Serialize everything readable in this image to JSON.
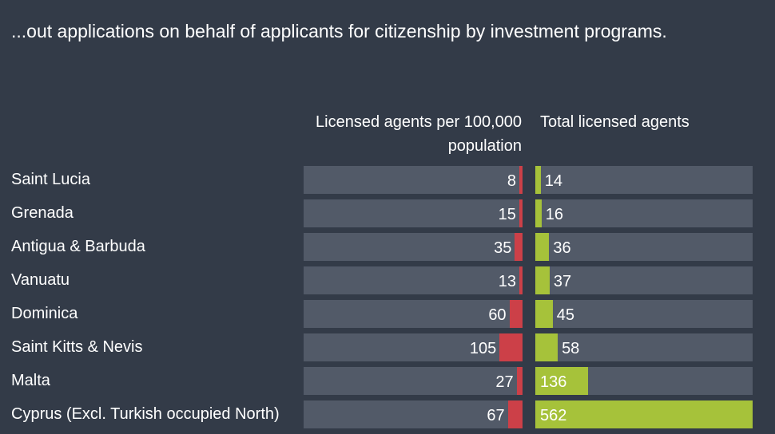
{
  "subtitle": "...out applications on behalf of applicants for citizenship by investment programs.",
  "colors": {
    "background": "#333b48",
    "track": "#525a68",
    "per_capita_bar": "#cc4048",
    "total_bar": "#a6c23a",
    "text": "#ffffff"
  },
  "chart_data": {
    "type": "bar",
    "title": "",
    "categories": [
      "Saint Lucia",
      "Grenada",
      "Antigua & Barbuda",
      "Vanuatu",
      "Dominica",
      "Saint Kitts & Nevis",
      "Malta",
      "Cyprus (Excl. Turkish occupied North)"
    ],
    "series": [
      {
        "name": "Licensed agents per 100,000 population",
        "values": [
          8,
          15,
          35,
          13,
          60,
          105,
          27,
          67
        ],
        "xlim": [
          0,
          1000
        ],
        "direction": "right-to-left"
      },
      {
        "name": "Total licensed agents",
        "values": [
          14,
          16,
          36,
          37,
          45,
          58,
          136,
          562
        ],
        "xlim": [
          0,
          562
        ],
        "direction": "left-to-right"
      }
    ],
    "grid": false,
    "legend": "column headers"
  }
}
